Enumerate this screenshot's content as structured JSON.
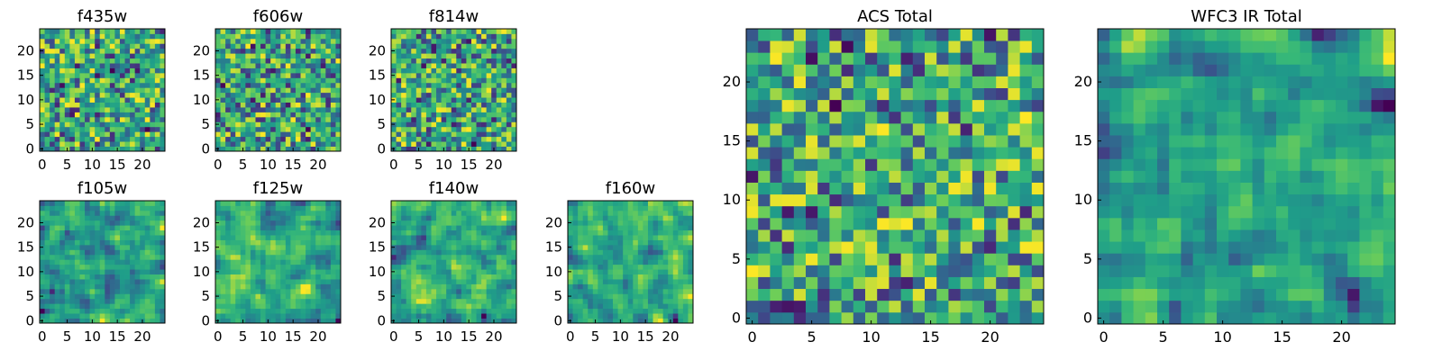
{
  "chart_data": [
    {
      "type": "heatmap",
      "title": "f435w",
      "grid_size": 25,
      "xticks": [
        0,
        5,
        10,
        15,
        20
      ],
      "yticks": [
        0,
        5,
        10,
        15,
        20
      ],
      "xlim": [
        0,
        24
      ],
      "ylim": [
        0,
        24
      ],
      "colormap": "viridis",
      "texture": "noise",
      "seed": 11
    },
    {
      "type": "heatmap",
      "title": "f606w",
      "grid_size": 25,
      "xticks": [
        0,
        5,
        10,
        15,
        20
      ],
      "yticks": [
        0,
        5,
        10,
        15,
        20
      ],
      "xlim": [
        0,
        24
      ],
      "ylim": [
        0,
        24
      ],
      "colormap": "viridis",
      "texture": "noise",
      "seed": 23
    },
    {
      "type": "heatmap",
      "title": "f814w",
      "grid_size": 25,
      "xticks": [
        0,
        5,
        10,
        15,
        20
      ],
      "yticks": [
        0,
        5,
        10,
        15,
        20
      ],
      "xlim": [
        0,
        24
      ],
      "ylim": [
        0,
        24
      ],
      "colormap": "viridis",
      "texture": "noise",
      "seed": 37
    },
    {
      "type": "heatmap",
      "title": "f105w",
      "grid_size": 25,
      "xticks": [
        0,
        5,
        10,
        15,
        20
      ],
      "yticks": [
        0,
        5,
        10,
        15,
        20
      ],
      "xlim": [
        0,
        24
      ],
      "ylim": [
        0,
        24
      ],
      "colormap": "viridis",
      "texture": "smooth",
      "seed": 41
    },
    {
      "type": "heatmap",
      "title": "f125w",
      "grid_size": 25,
      "xticks": [
        0,
        5,
        10,
        15,
        20
      ],
      "yticks": [
        0,
        5,
        10,
        15,
        20
      ],
      "xlim": [
        0,
        24
      ],
      "ylim": [
        0,
        24
      ],
      "colormap": "viridis",
      "texture": "smooth",
      "seed": 53
    },
    {
      "type": "heatmap",
      "title": "f140w",
      "grid_size": 25,
      "xticks": [
        0,
        5,
        10,
        15,
        20
      ],
      "yticks": [
        0,
        5,
        10,
        15,
        20
      ],
      "xlim": [
        0,
        24
      ],
      "ylim": [
        0,
        24
      ],
      "colormap": "viridis",
      "texture": "smooth",
      "seed": 67
    },
    {
      "type": "heatmap",
      "title": "f160w",
      "grid_size": 25,
      "xticks": [
        0,
        5,
        10,
        15,
        20
      ],
      "yticks": [
        0,
        5,
        10,
        15,
        20
      ],
      "xlim": [
        0,
        24
      ],
      "ylim": [
        0,
        24
      ],
      "colormap": "viridis",
      "texture": "smooth",
      "seed": 79
    },
    {
      "type": "heatmap",
      "title": "ACS Total",
      "grid_size": 25,
      "xticks": [
        0,
        5,
        10,
        15,
        20
      ],
      "yticks": [
        0,
        5,
        10,
        15,
        20
      ],
      "xlim": [
        0,
        24
      ],
      "ylim": [
        0,
        24
      ],
      "colormap": "viridis",
      "texture": "noise",
      "seed": 97
    },
    {
      "type": "heatmap",
      "title": "WFC3 IR Total",
      "grid_size": 25,
      "xticks": [
        0,
        5,
        10,
        15,
        20
      ],
      "yticks": [
        0,
        5,
        10,
        15,
        20
      ],
      "xlim": [
        0,
        24
      ],
      "ylim": [
        0,
        24
      ],
      "colormap": "viridis",
      "texture": "smooth",
      "seed": 113
    }
  ]
}
